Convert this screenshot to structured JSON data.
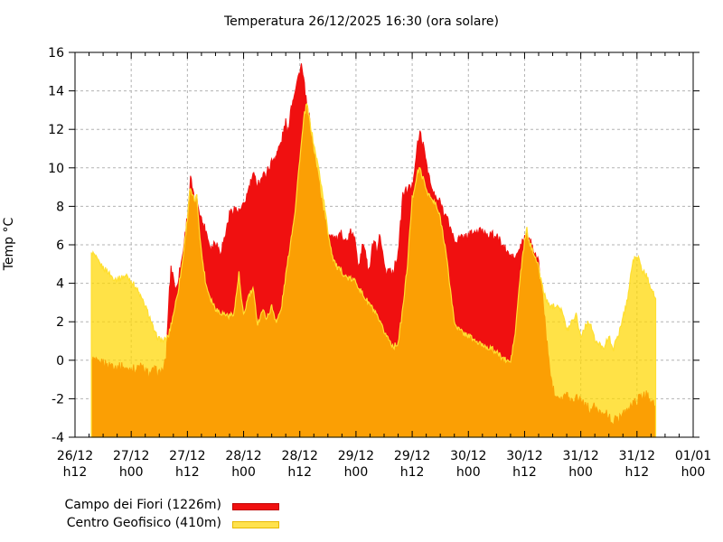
{
  "chart": {
    "title": "Temperatura 26/12/2025 16:30 (ora solare)",
    "ylabel": "Temp °C"
  },
  "legend": {
    "items": [
      {
        "label": "Campo dei Fiori (1226m)",
        "color": "#f01010",
        "edge": "#c00000"
      },
      {
        "label": "Centro Geofisico (410m)",
        "color": "#ffe24d",
        "edge": "#e8b800"
      }
    ]
  },
  "chart_data": {
    "type": "area",
    "title": "Temperatura 26/12/2025 16:30 (ora solare)",
    "xlabel": "",
    "ylabel": "Temp °C",
    "ylim": [
      -4,
      16
    ],
    "y_tick_step": 2,
    "grid": true,
    "legend_position": "bottom-left",
    "x_axis_hours_span": 132,
    "x_minor_tick_hours": 3,
    "x_major_tick_hours": 12,
    "x_ticks": [
      {
        "date": "26/12",
        "hour": "h12"
      },
      {
        "date": "27/12",
        "hour": "h00"
      },
      {
        "date": "27/12",
        "hour": "h12"
      },
      {
        "date": "28/12",
        "hour": "h00"
      },
      {
        "date": "28/12",
        "hour": "h12"
      },
      {
        "date": "29/12",
        "hour": "h00"
      },
      {
        "date": "29/12",
        "hour": "h12"
      },
      {
        "date": "30/12",
        "hour": "h00"
      },
      {
        "date": "30/12",
        "hour": "h12"
      },
      {
        "date": "31/12",
        "hour": "h00"
      },
      {
        "date": "31/12",
        "hour": "h12"
      },
      {
        "date": "01/01",
        "hour": "h00"
      }
    ],
    "grid_color": "#b3b3b3",
    "series": [
      {
        "name": "Campo dei Fiori (1226m)",
        "color": "#f01010",
        "fill_style": "solid",
        "points": [
          [
            3.5,
            0.1
          ],
          [
            4,
            0
          ],
          [
            5,
            -0.2
          ],
          [
            6,
            -0.1
          ],
          [
            7,
            -0.3
          ],
          [
            8,
            -0.2
          ],
          [
            9,
            -0.4
          ],
          [
            10,
            -0.3
          ],
          [
            11,
            -0.5
          ],
          [
            12,
            -0.4
          ],
          [
            13,
            -0.5
          ],
          [
            14,
            -0.3
          ],
          [
            15,
            -0.6
          ],
          [
            16,
            -0.7
          ],
          [
            17,
            -0.5
          ],
          [
            18,
            -0.7
          ],
          [
            19,
            -0.4
          ],
          [
            19.5,
            0.2
          ],
          [
            20,
            3.0
          ],
          [
            20.5,
            4.8
          ],
          [
            21,
            4.4
          ],
          [
            21.5,
            3.6
          ],
          [
            22,
            4.2
          ],
          [
            23,
            5.5
          ],
          [
            24,
            7.5
          ],
          [
            24.7,
            9.5
          ],
          [
            25,
            9.0
          ],
          [
            25.5,
            8.2
          ],
          [
            26,
            8.4
          ],
          [
            27,
            7.3
          ],
          [
            28,
            6.7
          ],
          [
            29,
            5.8
          ],
          [
            30,
            6.2
          ],
          [
            31,
            5.6
          ],
          [
            32,
            6.4
          ],
          [
            33,
            7.6
          ],
          [
            34,
            7.9
          ],
          [
            35,
            7.7
          ],
          [
            36,
            8.0
          ],
          [
            37,
            8.8
          ],
          [
            38,
            9.6
          ],
          [
            39,
            9.2
          ],
          [
            40,
            9.5
          ],
          [
            41,
            9.8
          ],
          [
            42,
            10.3
          ],
          [
            43,
            10.7
          ],
          [
            44,
            11.3
          ],
          [
            45,
            12.4
          ],
          [
            45.4,
            11.6
          ],
          [
            46,
            13.0
          ],
          [
            47,
            14.1
          ],
          [
            48,
            15.0
          ],
          [
            48.3,
            15.4
          ],
          [
            49,
            14.2
          ],
          [
            49.5,
            13.2
          ],
          [
            50,
            12.6
          ],
          [
            51,
            10.8
          ],
          [
            52,
            9.4
          ],
          [
            53,
            7.8
          ],
          [
            54,
            6.6
          ],
          [
            55,
            6.5
          ],
          [
            56,
            6.2
          ],
          [
            57,
            6.6
          ],
          [
            58,
            6.1
          ],
          [
            59,
            6.7
          ],
          [
            60,
            6.0
          ],
          [
            60.5,
            5.0
          ],
          [
            61,
            5.3
          ],
          [
            61.5,
            6.1
          ],
          [
            62,
            5.8
          ],
          [
            62.5,
            4.6
          ],
          [
            63,
            4.8
          ],
          [
            63.5,
            5.9
          ],
          [
            64,
            6.2
          ],
          [
            64.5,
            5.3
          ],
          [
            65,
            6.5
          ],
          [
            65.5,
            5.6
          ],
          [
            66,
            5.2
          ],
          [
            66.5,
            4.4
          ],
          [
            67,
            4.8
          ],
          [
            68,
            4.6
          ],
          [
            69,
            5.6
          ],
          [
            69.5,
            7.0
          ],
          [
            70,
            8.6
          ],
          [
            71,
            8.9
          ],
          [
            72,
            9.0
          ],
          [
            73,
            11.0
          ],
          [
            73.7,
            11.8
          ],
          [
            74,
            11.5
          ],
          [
            75,
            10.4
          ],
          [
            76,
            9.0
          ],
          [
            77,
            8.4
          ],
          [
            78,
            8.2
          ],
          [
            79,
            7.6
          ],
          [
            80,
            7.0
          ],
          [
            81,
            6.2
          ],
          [
            82,
            6.3
          ],
          [
            83,
            6.4
          ],
          [
            84,
            6.5
          ],
          [
            85,
            6.6
          ],
          [
            86,
            6.7
          ],
          [
            87,
            6.7
          ],
          [
            88,
            6.6
          ],
          [
            89,
            6.5
          ],
          [
            90,
            6.4
          ],
          [
            91,
            6.1
          ],
          [
            92,
            5.7
          ],
          [
            93,
            5.4
          ],
          [
            94,
            5.3
          ],
          [
            95,
            5.8
          ],
          [
            96,
            6.3
          ],
          [
            96.5,
            6.4
          ],
          [
            97,
            6.2
          ],
          [
            98,
            5.8
          ],
          [
            99,
            5.0
          ],
          [
            100,
            3.0
          ],
          [
            101,
            0.3
          ],
          [
            102,
            -1.5
          ],
          [
            103,
            -1.8
          ],
          [
            104,
            -2.0
          ],
          [
            105,
            -1.8
          ],
          [
            106,
            -2.1
          ],
          [
            107,
            -1.9
          ],
          [
            108,
            -2.0
          ],
          [
            109,
            -2.3
          ],
          [
            110,
            -2.6
          ],
          [
            111,
            -2.4
          ],
          [
            112,
            -2.8
          ],
          [
            113,
            -2.6
          ],
          [
            114,
            -3.0
          ],
          [
            115,
            -3.2
          ],
          [
            116,
            -3.0
          ],
          [
            117,
            -2.8
          ],
          [
            118,
            -2.6
          ],
          [
            119,
            -2.3
          ],
          [
            120,
            -2.1
          ],
          [
            121,
            -1.9
          ],
          [
            122,
            -1.8
          ],
          [
            123,
            -2.0
          ],
          [
            124,
            -2.4
          ]
        ]
      },
      {
        "name": "Centro Geofisico (410m)",
        "color": "#ffd700",
        "fill_style": "translucent-over",
        "overlap_color_over_red": "#fba005",
        "color_over_white": "#ffe247",
        "points": [
          [
            3.5,
            5.6
          ],
          [
            4,
            5.5
          ],
          [
            5,
            5.1
          ],
          [
            6,
            4.8
          ],
          [
            7,
            4.6
          ],
          [
            8,
            4.3
          ],
          [
            9,
            4.2
          ],
          [
            10,
            4.3
          ],
          [
            11,
            4.4
          ],
          [
            12,
            4.1
          ],
          [
            13,
            3.8
          ],
          [
            14,
            3.3
          ],
          [
            15,
            2.8
          ],
          [
            16,
            2.2
          ],
          [
            17,
            1.4
          ],
          [
            18,
            1.1
          ],
          [
            19,
            1.0
          ],
          [
            20,
            1.3
          ],
          [
            21,
            2.4
          ],
          [
            22,
            3.6
          ],
          [
            23,
            5.2
          ],
          [
            24,
            7.4
          ],
          [
            24.5,
            8.9
          ],
          [
            25,
            8.6
          ],
          [
            25.5,
            8.3
          ],
          [
            26,
            8.5
          ],
          [
            26.5,
            7.0
          ],
          [
            27,
            5.6
          ],
          [
            28,
            3.9
          ],
          [
            29,
            3.2
          ],
          [
            30,
            2.7
          ],
          [
            31,
            2.5
          ],
          [
            32,
            2.4
          ],
          [
            33,
            2.3
          ],
          [
            34,
            2.5
          ],
          [
            35,
            4.5
          ],
          [
            35.5,
            3.2
          ],
          [
            36,
            2.3
          ],
          [
            37,
            3.3
          ],
          [
            38,
            3.7
          ],
          [
            39,
            1.9
          ],
          [
            40,
            2.6
          ],
          [
            41,
            2.2
          ],
          [
            42,
            2.8
          ],
          [
            43,
            2.0
          ],
          [
            44,
            2.6
          ],
          [
            45,
            4.4
          ],
          [
            46,
            6.1
          ],
          [
            47,
            7.8
          ],
          [
            48,
            10.5
          ],
          [
            49,
            12.8
          ],
          [
            49.5,
            13.3
          ],
          [
            50,
            12.6
          ],
          [
            51,
            11.2
          ],
          [
            52,
            10.0
          ],
          [
            53,
            8.5
          ],
          [
            54,
            6.7
          ],
          [
            55,
            5.4
          ],
          [
            56,
            4.8
          ],
          [
            57,
            4.6
          ],
          [
            58,
            4.3
          ],
          [
            59,
            4.2
          ],
          [
            60,
            4.1
          ],
          [
            61,
            3.6
          ],
          [
            62,
            3.2
          ],
          [
            63,
            2.9
          ],
          [
            64,
            2.5
          ],
          [
            65,
            2.0
          ],
          [
            66,
            1.5
          ],
          [
            67,
            1.1
          ],
          [
            68,
            0.7
          ],
          [
            69,
            0.9
          ],
          [
            70,
            2.7
          ],
          [
            71,
            5.0
          ],
          [
            72,
            8.4
          ],
          [
            73,
            9.6
          ],
          [
            73.5,
            10.0
          ],
          [
            74,
            9.7
          ],
          [
            75,
            8.9
          ],
          [
            76,
            8.4
          ],
          [
            77,
            8.1
          ],
          [
            78,
            7.4
          ],
          [
            79,
            6.0
          ],
          [
            80,
            4.0
          ],
          [
            81,
            2.0
          ],
          [
            82,
            1.6
          ],
          [
            83,
            1.4
          ],
          [
            84,
            1.3
          ],
          [
            85,
            1.1
          ],
          [
            86,
            0.9
          ],
          [
            87,
            0.8
          ],
          [
            88,
            0.7
          ],
          [
            89,
            0.6
          ],
          [
            90,
            0.4
          ],
          [
            91,
            0.2
          ],
          [
            92,
            0.0
          ],
          [
            93,
            -0.1
          ],
          [
            94,
            1.4
          ],
          [
            95,
            4.2
          ],
          [
            96,
            6.2
          ],
          [
            96.5,
            6.8
          ],
          [
            97,
            6.1
          ],
          [
            98,
            5.6
          ],
          [
            99,
            4.8
          ],
          [
            100,
            3.6
          ],
          [
            101,
            2.9
          ],
          [
            102,
            2.8
          ],
          [
            103,
            2.9
          ],
          [
            104,
            2.6
          ],
          [
            105,
            1.5
          ],
          [
            106,
            2.0
          ],
          [
            107,
            2.4
          ],
          [
            108,
            1.2
          ],
          [
            109,
            1.8
          ],
          [
            110,
            2.0
          ],
          [
            111,
            1.0
          ],
          [
            112,
            0.8
          ],
          [
            113,
            0.7
          ],
          [
            114,
            1.2
          ],
          [
            115,
            0.6
          ],
          [
            116,
            1.3
          ],
          [
            117,
            2.2
          ],
          [
            118,
            3.2
          ],
          [
            119,
            5.0
          ],
          [
            120,
            5.5
          ],
          [
            121,
            4.7
          ],
          [
            122,
            4.4
          ],
          [
            123,
            3.8
          ],
          [
            124,
            3.2
          ]
        ]
      }
    ]
  }
}
